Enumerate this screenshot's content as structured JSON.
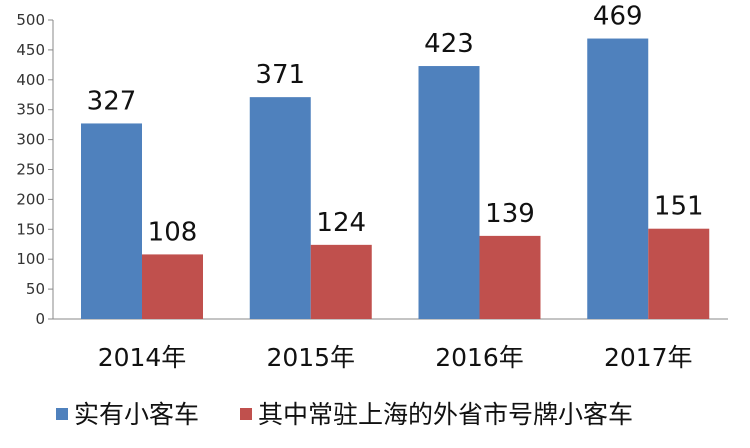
{
  "chart_data": {
    "type": "bar",
    "categories": [
      "2014年",
      "2015年",
      "2016年",
      "2017年"
    ],
    "series": [
      {
        "name": "实有小客车",
        "values": [
          327,
          371,
          423,
          469
        ],
        "color": "#4f81bd"
      },
      {
        "name": "其中常驻上海的外省市号牌小客车",
        "values": [
          108,
          124,
          139,
          151
        ],
        "color": "#c0504d"
      }
    ],
    "ylim": [
      0,
      500
    ],
    "yticks": [
      0,
      50,
      100,
      150,
      200,
      250,
      300,
      350,
      400,
      450,
      500
    ],
    "grid": false,
    "legend": "bottom",
    "title": "",
    "xlabel": "",
    "ylabel": ""
  }
}
